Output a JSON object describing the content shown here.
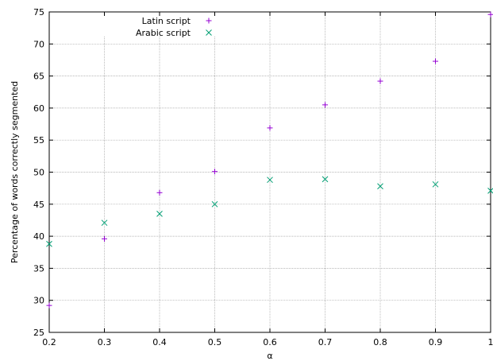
{
  "chart_data": {
    "type": "scatter",
    "title": "",
    "xlabel": "α",
    "ylabel": "Percentage of words correctly segmented",
    "xlim": [
      0.2,
      1.0
    ],
    "ylim": [
      25,
      75
    ],
    "xticks": [
      0.2,
      0.3,
      0.4,
      0.5,
      0.6,
      0.7,
      0.8,
      0.9,
      1.0
    ],
    "xtick_labels": [
      "0.2",
      "0.3",
      "0.4",
      "0.5",
      "0.6",
      "0.7",
      "0.8",
      "0.9",
      "1"
    ],
    "yticks": [
      25,
      30,
      35,
      40,
      45,
      50,
      55,
      60,
      65,
      70,
      75
    ],
    "ytick_labels": [
      "25",
      "30",
      "35",
      "40",
      "45",
      "50",
      "55",
      "60",
      "65",
      "70",
      "75"
    ],
    "grid": true,
    "legend_position": "top-left",
    "series": [
      {
        "name": "Latin script",
        "marker": "plus",
        "color": "#9400d3",
        "x": [
          0.2,
          0.3,
          0.4,
          0.5,
          0.6,
          0.7,
          0.8,
          0.9,
          1.0
        ],
        "y": [
          29.2,
          39.6,
          46.8,
          50.1,
          56.9,
          60.5,
          64.2,
          67.3,
          74.6
        ]
      },
      {
        "name": "Arabic script",
        "marker": "cross",
        "color": "#009e73",
        "x": [
          0.2,
          0.3,
          0.4,
          0.5,
          0.6,
          0.7,
          0.8,
          0.9,
          1.0
        ],
        "y": [
          38.8,
          42.1,
          43.5,
          45.0,
          48.8,
          48.9,
          47.8,
          48.1,
          47.1
        ]
      }
    ]
  }
}
